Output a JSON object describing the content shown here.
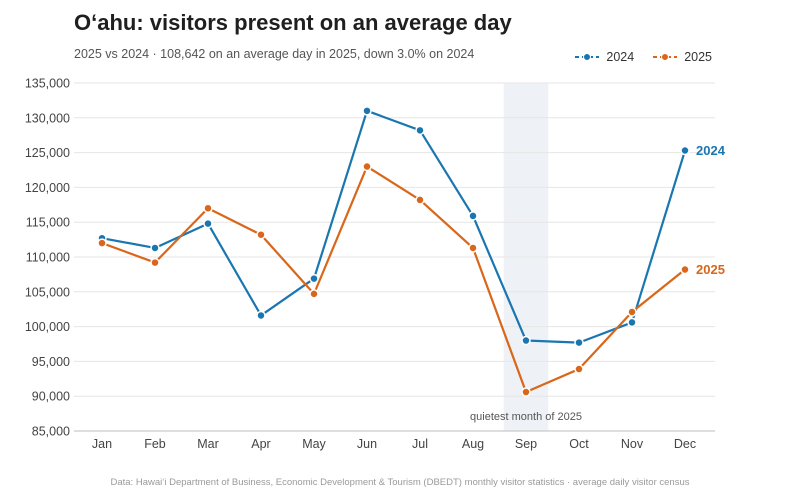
{
  "title": "O‘ahu: visitors present on an average day",
  "subtitle": "2025 vs 2024  ·  108,642 on an average day in 2025, down 3.0% on 2024",
  "footer": "Data: Hawai‘i Department of Business, Economic Development & Tourism (DBEDT) monthly visitor statistics · average daily visitor census",
  "legend": [
    {
      "label": "2024",
      "color": "#1a76b0"
    },
    {
      "label": "2025",
      "color": "#d9661a"
    }
  ],
  "chart_data": {
    "type": "line",
    "categories": [
      "Jan",
      "Feb",
      "Mar",
      "Apr",
      "May",
      "Jun",
      "Jul",
      "Aug",
      "Sep",
      "Oct",
      "Nov",
      "Dec"
    ],
    "series": [
      {
        "name": "2024",
        "color": "#1a76b0",
        "values": [
          112700,
          111300,
          114800,
          101600,
          106900,
          131000,
          128200,
          115900,
          98000,
          97700,
          100600,
          125300
        ]
      },
      {
        "name": "2025",
        "color": "#d9661a",
        "values": [
          112000,
          109200,
          117000,
          113200,
          104700,
          123000,
          118200,
          111300,
          90600,
          93900,
          102100,
          108200
        ]
      }
    ],
    "ylim": [
      85000,
      135000
    ],
    "yticks": [
      85000,
      90000,
      95000,
      100000,
      105000,
      110000,
      115000,
      120000,
      125000,
      130000,
      135000
    ],
    "ytick_labels": [
      "85,000",
      "90,000",
      "95,000",
      "100,000",
      "105,000",
      "110,000",
      "115,000",
      "120,000",
      "125,000",
      "130,000",
      "135,000"
    ],
    "grid": true,
    "legend_position": "top-right",
    "highlight": {
      "category": "Sep",
      "label": "quietest month of 2025"
    },
    "end_labels": [
      "2024",
      "2025"
    ]
  }
}
